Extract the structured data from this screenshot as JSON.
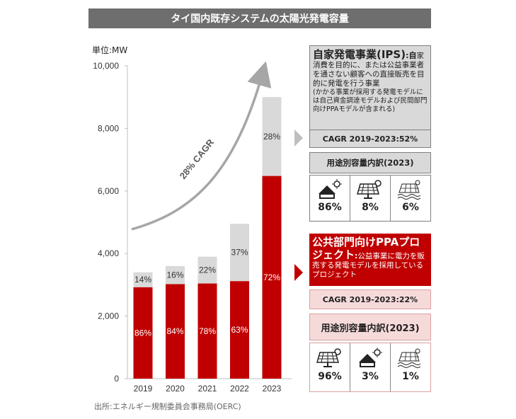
{
  "header": {
    "title": "タイ国内既存システムの太陽光発電容量"
  },
  "unit_label": "単位:MW",
  "source": "出所:エネルギー規制委員会事務局(OERC)",
  "colors": {
    "red": "#c00000",
    "gray": "#d9d9d9",
    "arrow": "#a6a6a6",
    "panel_gray": "#d9d9d9",
    "panel_pink": "#f6dada"
  },
  "chart_data": {
    "type": "bar",
    "stacked": true,
    "categories": [
      "2019",
      "2020",
      "2021",
      "2022",
      "2023"
    ],
    "totals": [
      3400,
      3600,
      3900,
      4950,
      9000
    ],
    "series": [
      {
        "name": "",
        "color": "#c00000",
        "values": [
          2924,
          3024,
          3042,
          3119,
          6480
        ],
        "labels": [
          "86%",
          "84%",
          "78%",
          "63%",
          "72%"
        ]
      },
      {
        "name": "",
        "color": "#d9d9d9",
        "values": [
          476,
          576,
          858,
          1831,
          2520
        ],
        "labels": [
          "14%",
          "16%",
          "22%",
          "37%",
          "28%"
        ]
      }
    ],
    "ylim": [
      0,
      10000
    ],
    "yticks": [
      "0",
      "2,000",
      "4,000",
      "6,000",
      "8,000",
      "10,000"
    ],
    "ytick_values": [
      0,
      2000,
      4000,
      6000,
      8000,
      10000
    ],
    "annotation": "28% CAGR",
    "gridlines": false
  },
  "panels": {
    "ips": {
      "title": "自家発電事業(IPS)",
      "desc_bold": ":自",
      "desc": "家消費を目的に、または公益事業者を通さない顧客への直接販売を目的に発電を行う事業",
      "desc_note": "(かかる事業が採用する発電モデルには自己資金調達モデルおよび民間部門向けPPAモデルが含まれる)",
      "cagr": "CAGR 2019-2023:52%",
      "breakdown_title": "用途別容量内訳(2023)",
      "items": [
        {
          "icon": "rooftop-solar-icon",
          "value": "86%"
        },
        {
          "icon": "ground-solar-panel-icon",
          "value": "8%"
        },
        {
          "icon": "floating-solar-icon",
          "value": "6%"
        }
      ]
    },
    "ppa": {
      "title": "公共部門向けPPAプロジェクト",
      "title_suffix": ":",
      "desc": "公益事業に電力を販売する発電モデルを採用しているプロジェクト",
      "cagr": "CAGR 2019-2023:22%",
      "breakdown_title": "用途別容量内訳(2023)",
      "items": [
        {
          "icon": "ground-solar-panel-icon",
          "value": "96%"
        },
        {
          "icon": "rooftop-solar-icon",
          "value": "3%"
        },
        {
          "icon": "floating-solar-icon",
          "value": "1%"
        }
      ]
    }
  }
}
